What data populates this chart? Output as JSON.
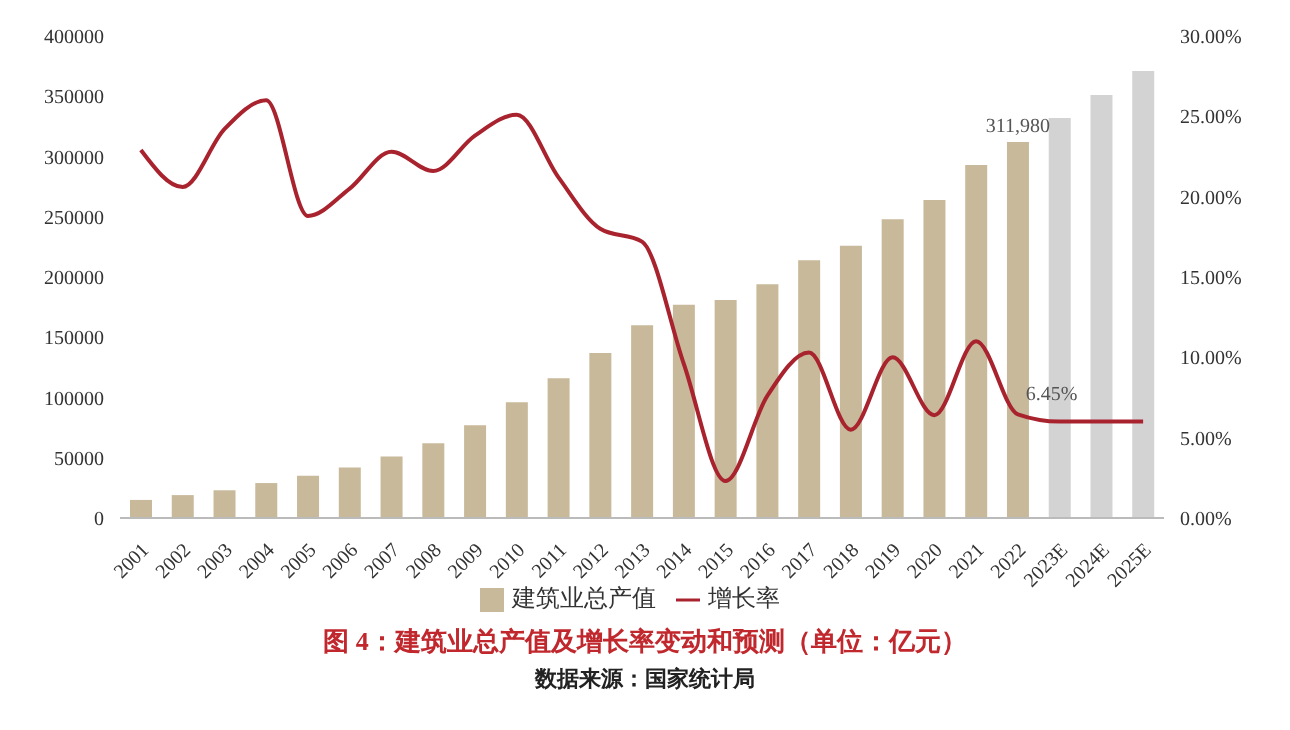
{
  "chart_data": {
    "type": "bar",
    "title": "图 4：建筑业总产值及增长率变动和预测（单位：亿元）",
    "annotations": [
      "数据来源：国家统计局"
    ],
    "categories": [
      "2001",
      "2002",
      "2003",
      "2004",
      "2005",
      "2006",
      "2007",
      "2008",
      "2009",
      "2010",
      "2011",
      "2012",
      "2013",
      "2014",
      "2015",
      "2016",
      "2017",
      "2018",
      "2019",
      "2020",
      "2021",
      "2022",
      "2023E",
      "2024E",
      "2025E"
    ],
    "series": [
      {
        "name": "建筑业总产值",
        "color": "#c8b99a",
        "colors": [
          "#c8b99a",
          "#c8b99a",
          "#c8b99a",
          "#c8b99a",
          "#c8b99a",
          "#c8b99a",
          "#c8b99a",
          "#c8b99a",
          "#c8b99a",
          "#c8b99a",
          "#c8b99a",
          "#c8b99a",
          "#c8b99a",
          "#c8b99a",
          "#c8b99a",
          "#c8b99a",
          "#c8b99a",
          "#c8b99a",
          "#c8b99a",
          "#c8b99a",
          "#c8b99a",
          "#c8b99a",
          "#d3d3d3",
          "#d3d3d3",
          "#d3d3d3"
        ],
        "values": [
          15000,
          19000,
          23000,
          29000,
          35000,
          42000,
          51000,
          62000,
          77000,
          96000,
          116000,
          137000,
          160000,
          177000,
          181000,
          194000,
          214000,
          226000,
          248000,
          264000,
          293000,
          311980,
          332000,
          351000,
          371000
        ],
        "value_labels": [
          null,
          null,
          null,
          null,
          null,
          null,
          null,
          null,
          null,
          null,
          null,
          null,
          null,
          null,
          null,
          null,
          null,
          null,
          null,
          null,
          null,
          "311,980",
          null,
          null,
          null
        ]
      },
      {
        "name": "增长率",
        "type": "line",
        "axis": "y2",
        "color": "#a8232e",
        "values": [
          22.9,
          20.6,
          24.2,
          26.0,
          18.8,
          20.5,
          22.8,
          21.6,
          23.8,
          25.1,
          21.2,
          18.0,
          17.2,
          9.6,
          2.3,
          7.6,
          10.3,
          5.5,
          10.0,
          6.4,
          11.0,
          6.45,
          6.0,
          6.0,
          6.0
        ],
        "value_labels": [
          null,
          null,
          null,
          null,
          null,
          null,
          null,
          null,
          null,
          null,
          null,
          null,
          null,
          null,
          null,
          null,
          null,
          null,
          null,
          null,
          null,
          "6.45%",
          null,
          null,
          null
        ]
      }
    ],
    "ylim": [
      0,
      400000
    ],
    "yticks": [
      0,
      50000,
      100000,
      150000,
      200000,
      250000,
      300000,
      350000,
      400000
    ],
    "y2lim": [
      0,
      30
    ],
    "y2ticks": [
      {
        "value": 0,
        "label": "0.00%"
      },
      {
        "value": 5,
        "label": "5.00%"
      },
      {
        "value": 10,
        "label": "10.00%"
      },
      {
        "value": 15,
        "label": "15.00%"
      },
      {
        "value": 20,
        "label": "20.00%"
      },
      {
        "value": 25,
        "label": "25.00%"
      },
      {
        "value": 30,
        "label": "30.00%"
      }
    ],
    "legend": "bottom",
    "marker": "none",
    "line_style": "solid"
  }
}
